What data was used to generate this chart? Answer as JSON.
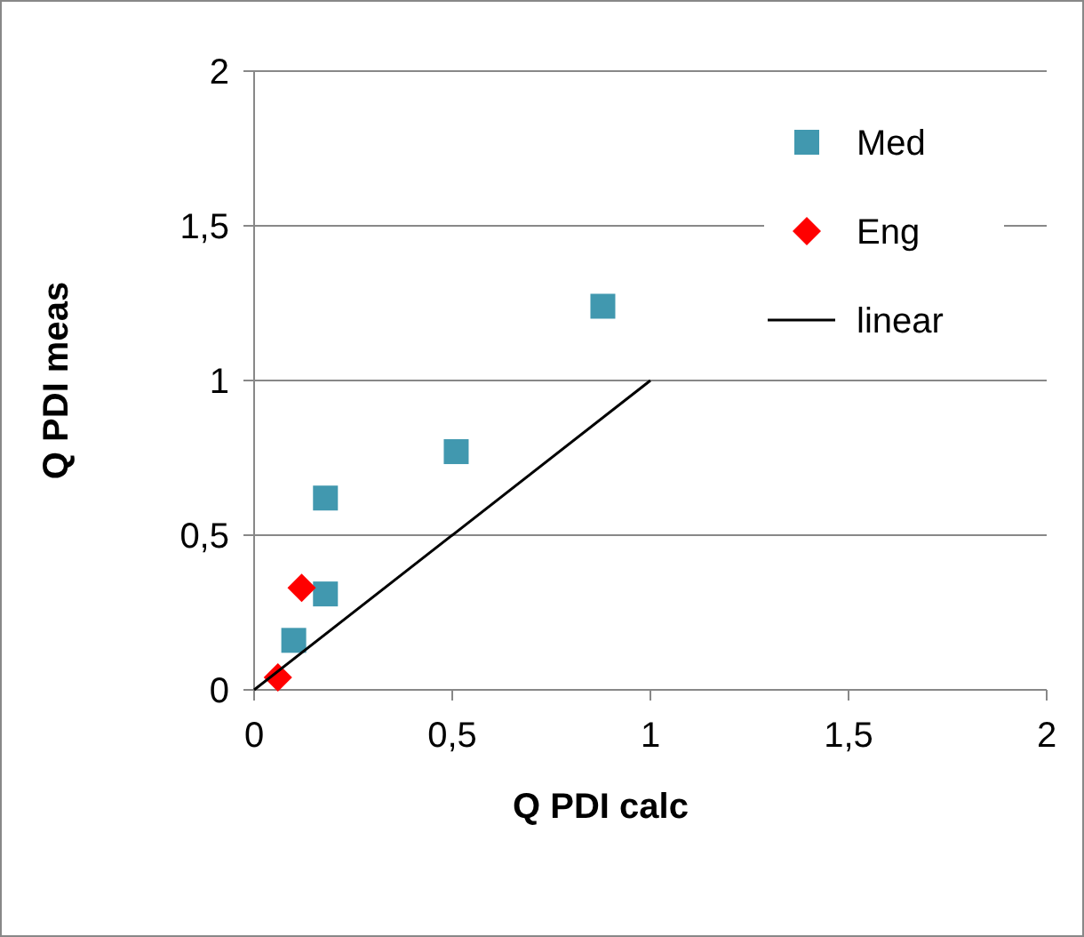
{
  "chart_data": {
    "type": "scatter",
    "xlabel": "Q PDI calc",
    "ylabel": "Q PDI meas",
    "xlim": [
      0,
      2
    ],
    "ylim": [
      0,
      2
    ],
    "xticks": [
      {
        "value": 0,
        "label": "0"
      },
      {
        "value": 0.5,
        "label": "0,5"
      },
      {
        "value": 1,
        "label": "1"
      },
      {
        "value": 1.5,
        "label": "1,5"
      },
      {
        "value": 2,
        "label": "2"
      }
    ],
    "yticks": [
      {
        "value": 0,
        "label": "0"
      },
      {
        "value": 0.5,
        "label": "0,5"
      },
      {
        "value": 1,
        "label": "1"
      },
      {
        "value": 1.5,
        "label": "1,5"
      },
      {
        "value": 2,
        "label": "2"
      }
    ],
    "grid": "y",
    "legend": "top right",
    "series": [
      {
        "name": "Med",
        "marker": "square",
        "color": "#4198af",
        "x": [
          0.1,
          0.18,
          0.18,
          0.51,
          0.88
        ],
        "values": [
          0.16,
          0.31,
          0.62,
          0.77,
          1.24
        ]
      },
      {
        "name": "Eng",
        "marker": "diamond",
        "color": "#ff0000",
        "x": [
          0.12,
          0.06
        ],
        "values": [
          0.33,
          0.04
        ]
      },
      {
        "name": "linear",
        "type": "line",
        "marker": "none",
        "color": "#000000",
        "x": [
          0,
          1
        ],
        "values": [
          0,
          1
        ]
      }
    ]
  }
}
